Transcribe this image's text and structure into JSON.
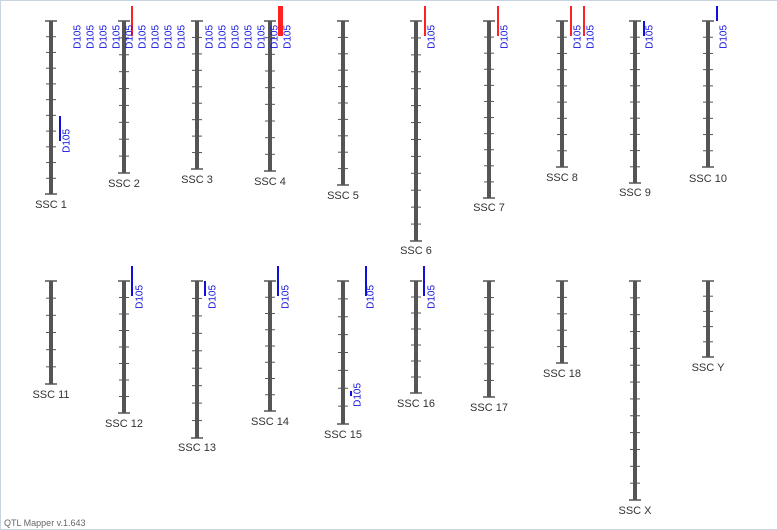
{
  "app": {
    "version_label": "QTL Mapper v.1.643"
  },
  "colors": {
    "chromosome": "#555555",
    "tick": "#555555",
    "qtl_red": "#ff2020",
    "qtl_blue": "#1010dd",
    "label": "#333333"
  },
  "chromosomes": [
    {
      "name": "SSC 1",
      "qtls": [
        {
          "label": "D105",
          "color": "blue",
          "clabel": "D105"
        },
        {
          "label": "D105",
          "color": "blue"
        },
        {
          "label": "D105",
          "color": "blue"
        },
        {
          "label": "D105",
          "color": "blue"
        },
        {
          "label": "D105",
          "color": "blue"
        }
      ]
    },
    {
      "name": "SSC 2",
      "qtls": [
        {
          "label": "D105",
          "color": "red"
        },
        {
          "label": "D105",
          "color": "blue"
        },
        {
          "label": "D105",
          "color": "blue"
        },
        {
          "label": "D105",
          "color": "blue"
        },
        {
          "label": "D105",
          "color": "blue"
        },
        {
          "label": "D105",
          "color": "blue"
        }
      ]
    },
    {
      "name": "SSC 3",
      "qtls": [
        {
          "label": "D105",
          "color": "blue"
        },
        {
          "label": "D105",
          "color": "blue"
        },
        {
          "label": "D105",
          "color": "blue"
        },
        {
          "label": "D105",
          "color": "blue"
        },
        {
          "label": "D105",
          "color": "blue"
        }
      ]
    },
    {
      "name": "SSC 4",
      "qtls": [
        {
          "label": "D105",
          "color": "red"
        },
        {
          "label": "D105",
          "color": "red"
        },
        {
          "label": "D105",
          "color": "blue"
        },
        {
          "label": "D105",
          "color": "blue"
        }
      ]
    },
    {
      "name": "SSC 5",
      "qtls": []
    },
    {
      "name": "SSC 6",
      "qtls": [
        {
          "label": "D105",
          "color": "red"
        }
      ]
    },
    {
      "name": "SSC 7",
      "qtls": [
        {
          "label": "D105",
          "color": "red"
        }
      ]
    },
    {
      "name": "SSC 8",
      "qtls": [
        {
          "label": "D105",
          "color": "red"
        },
        {
          "label": "D105",
          "color": "red"
        }
      ]
    },
    {
      "name": "SSC 9",
      "qtls": [
        {
          "label": "D105",
          "color": "blue"
        }
      ]
    },
    {
      "name": "SSC 10",
      "qtls": [
        {
          "label": "D105",
          "color": "blue"
        }
      ]
    },
    {
      "name": "SSC 11",
      "qtls": []
    },
    {
      "name": "SSC 12",
      "qtls": [
        {
          "label": "D105",
          "color": "blue"
        }
      ]
    },
    {
      "name": "SSC 13",
      "qtls": [
        {
          "label": "D105",
          "color": "blue"
        }
      ]
    },
    {
      "name": "SSC 14",
      "qtls": [
        {
          "label": "D105",
          "color": "blue"
        }
      ]
    },
    {
      "name": "SSC 15",
      "qtls": [
        {
          "label": "D105",
          "color": "blue"
        },
        {
          "label": "D105",
          "color": "blue"
        }
      ]
    },
    {
      "name": "SSC 16",
      "qtls": [
        {
          "label": "D105",
          "color": "blue"
        }
      ]
    },
    {
      "name": "SSC 17",
      "qtls": []
    },
    {
      "name": "SSC 18",
      "qtls": []
    },
    {
      "name": "SSC X",
      "qtls": []
    },
    {
      "name": "SSC Y",
      "qtls": []
    }
  ]
}
